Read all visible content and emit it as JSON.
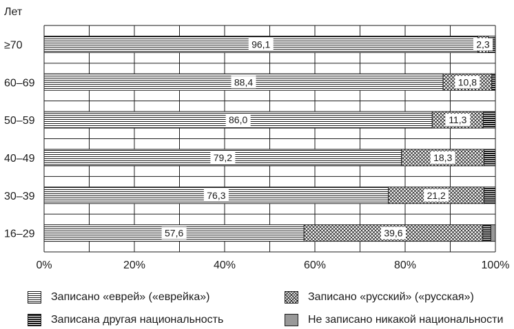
{
  "chart_data": {
    "type": "bar",
    "orientation": "horizontal",
    "stacked": true,
    "y_axis_title": "Лет",
    "categories": [
      "≥70",
      "60–69",
      "50–59",
      "40–49",
      "30–39",
      "16–29"
    ],
    "x_ticks": [
      "0%",
      "20%",
      "40%",
      "60%",
      "80%",
      "100%"
    ],
    "xlim": [
      0,
      100
    ],
    "grid": true,
    "series": [
      {
        "name": "Записано «еврей» («еврейка»)",
        "pattern": "horizontal-lines",
        "values": [
          96.1,
          88.4,
          86.0,
          79.2,
          76.3,
          57.6
        ],
        "labels": [
          "96,1",
          "88,4",
          "86,0",
          "79,2",
          "76,3",
          "57,6"
        ]
      },
      {
        "name": "Записано «русский» («русская»)",
        "pattern": "crosshatch",
        "values": [
          2.3,
          10.8,
          11.3,
          18.3,
          21.2,
          39.6
        ],
        "labels": [
          "2,3",
          "10,8",
          "11,3",
          "18,3",
          "21,2",
          "39,6"
        ]
      },
      {
        "name": "Записана другая национальность",
        "pattern": "dense-horizontal-lines",
        "values": [
          1.6,
          0.8,
          2.7,
          2.5,
          2.5,
          1.8
        ]
      },
      {
        "name": "Не записано никакой национальности",
        "pattern": "solid-gray",
        "values": [
          0.0,
          0.0,
          0.0,
          0.0,
          0.0,
          1.0
        ]
      }
    ],
    "legend_position": "bottom"
  },
  "legend": {
    "items": [
      {
        "label": "Записано «еврей» («еврейка»)"
      },
      {
        "label": "Записано «русский» («русская»)"
      },
      {
        "label": "Записана другая национальность"
      },
      {
        "label": "Не записано никакой национальности"
      }
    ]
  }
}
